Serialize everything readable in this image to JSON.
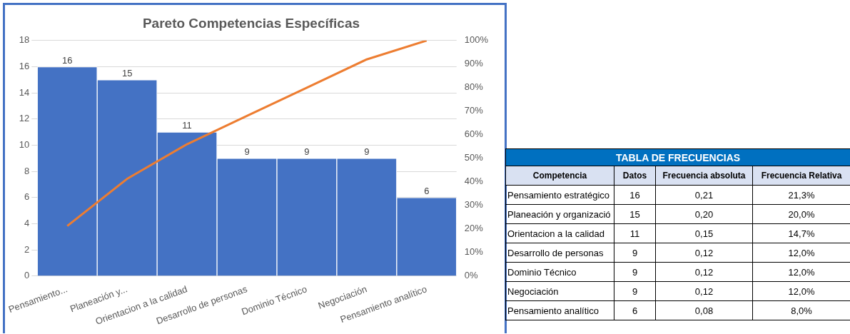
{
  "chart_data": [
    {
      "type": "bar",
      "title": "Pareto Competencias Específicas",
      "categories": [
        "Pensamiento...",
        "Planeación y...",
        "Orientacion a la calidad",
        "Desarrollo de personas",
        "Dominio Técnico",
        "Negociación",
        "Pensamiento analítico"
      ],
      "series": [
        {
          "type": "bar",
          "color": "#4472c4",
          "values": [
            16,
            15,
            11,
            9,
            9,
            9,
            6
          ],
          "value_labels": [
            "16",
            "15",
            "11",
            "9",
            "9",
            "9",
            "6"
          ]
        },
        {
          "type": "line",
          "axis": "y2",
          "color": "#ed7d31",
          "values": [
            21.3,
            41.3,
            56.0,
            68.0,
            80.0,
            92.0,
            100.0
          ]
        }
      ],
      "ylim": [
        0,
        18
      ],
      "yticks": [
        0,
        2,
        4,
        6,
        8,
        10,
        12,
        14,
        16,
        18
      ],
      "y2lim": [
        0,
        100
      ],
      "y2ticks": [
        {
          "value": 0,
          "label": "0%"
        },
        {
          "value": 10,
          "label": "10%"
        },
        {
          "value": 20,
          "label": "20%"
        },
        {
          "value": 30,
          "label": "30%"
        },
        {
          "value": 40,
          "label": "40%"
        },
        {
          "value": 50,
          "label": "50%"
        },
        {
          "value": 60,
          "label": "60%"
        },
        {
          "value": 70,
          "label": "70%"
        },
        {
          "value": 80,
          "label": "80%"
        },
        {
          "value": 90,
          "label": "90%"
        },
        {
          "value": 100,
          "label": "100%"
        }
      ],
      "grid": "y",
      "legend": false
    },
    {
      "type": "other",
      "title": "TABLA DE FRECUENCIAS",
      "xlabel": "Competencia",
      "categories": [
        "Pensamiento estratégico",
        "Planeación y organizació",
        "Orientacion a la calidad",
        "Desarrollo de personas",
        "Dominio Técnico",
        "Negociación",
        "Pensamiento analítico"
      ],
      "series": [
        {
          "name": "Datos",
          "values": [
            16,
            15,
            11,
            9,
            9,
            9,
            6
          ],
          "value_labels": [
            "16",
            "15",
            "11",
            "9",
            "9",
            "9",
            "6"
          ]
        },
        {
          "name": "Frecuencia absoluta",
          "values": [
            0.21,
            0.2,
            0.15,
            0.12,
            0.12,
            0.12,
            0.08
          ],
          "value_labels": [
            "0,21",
            "0,20",
            "0,15",
            "0,12",
            "0,12",
            "0,12",
            "0,08"
          ]
        },
        {
          "name": "Frecuencia Relativa",
          "values": [
            21.3,
            20.0,
            14.7,
            12.0,
            12.0,
            12.0,
            8.0
          ],
          "value_labels": [
            "21,3%",
            "20,0%",
            "14,7%",
            "12,0%",
            "12,0%",
            "12,0%",
            "8,0%"
          ]
        }
      ]
    }
  ]
}
